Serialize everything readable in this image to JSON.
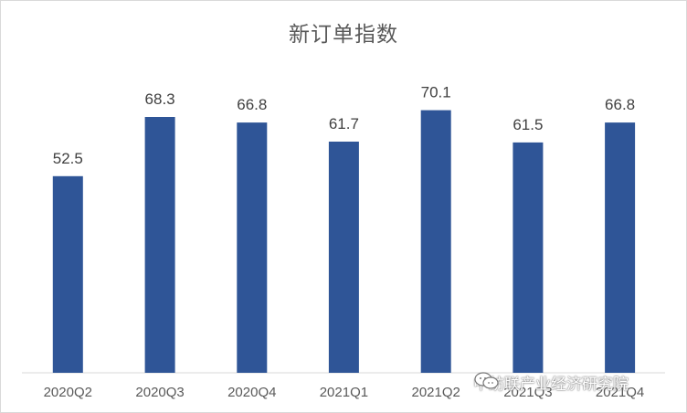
{
  "chart_data": {
    "type": "bar",
    "title": "新订单指数",
    "categories": [
      "2020Q2",
      "2020Q3",
      "2020Q4",
      "2021Q1",
      "2021Q2",
      "2021Q3",
      "2021Q4"
    ],
    "values": [
      52.5,
      68.3,
      66.8,
      61.7,
      70.1,
      61.5,
      66.8
    ],
    "value_labels": [
      "52.5",
      "68.3",
      "66.8",
      "61.7",
      "70.1",
      "61.5",
      "66.8"
    ],
    "bar_color": "#2f5597",
    "grid": false,
    "legend": "none",
    "xlabel": "",
    "ylabel": ""
  },
  "watermark": {
    "text": "中纺联产业经济研究院",
    "icon": "wechat-icon"
  }
}
